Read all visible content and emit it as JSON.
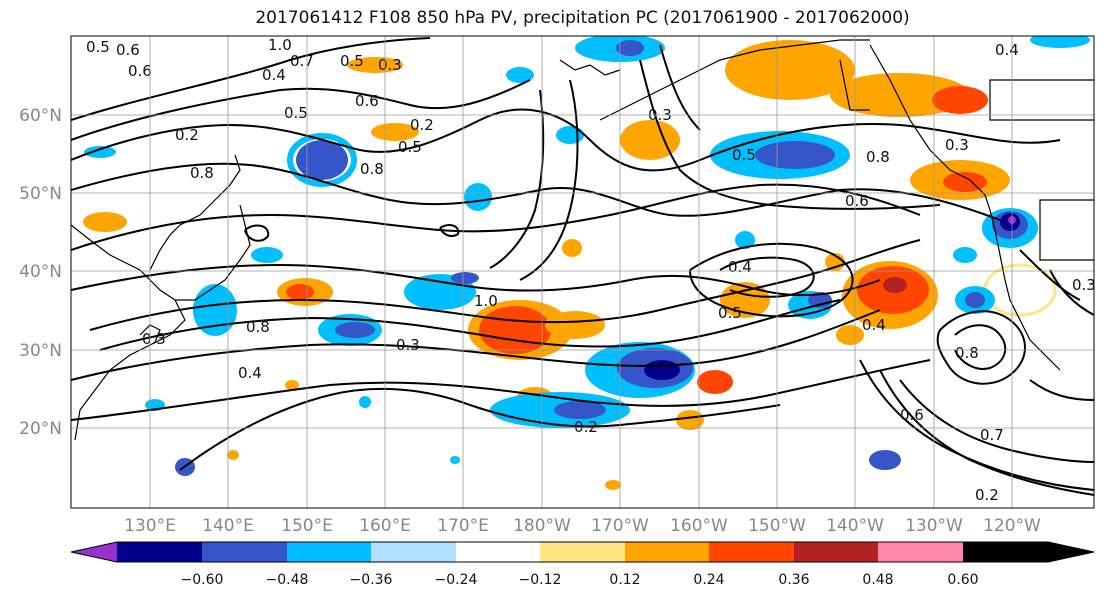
{
  "title": "2017061412 F108 850 hPa PV, precipitation PC (2017061900 - 2017062000)",
  "map": {
    "lon_ticks": [
      "130°E",
      "140°E",
      "150°E",
      "160°E",
      "170°E",
      "180°W",
      "170°W",
      "160°W",
      "150°W",
      "140°W",
      "130°W",
      "120°W"
    ],
    "lat_ticks": [
      "20°N",
      "30°N",
      "40°N",
      "50°N",
      "60°N"
    ],
    "gridlines": true
  },
  "colorbar": {
    "ticks": [
      "−0.60",
      "−0.48",
      "−0.36",
      "−0.24",
      "−0.12",
      "0.12",
      "0.24",
      "0.36",
      "0.48",
      "0.60"
    ],
    "colors": [
      "#9932cc",
      "#00008b",
      "#3655c8",
      "#00bfff",
      "#b0e0ff",
      "#ffffff",
      "#ffe680",
      "#ffa500",
      "#ff4500",
      "#b22222",
      "#ff88aa"
    ],
    "extend": "both"
  },
  "contour_labels": [
    "0.5",
    "0.6",
    "0.6",
    "1.0",
    "0.7",
    "0.4",
    "0.5",
    "0.3",
    "0.2",
    "0.5",
    "0.2",
    "0.6",
    "0.5",
    "0.8",
    "0.8",
    "0.3",
    "0.5",
    "0.8",
    "0.6",
    "0.4",
    "1.0",
    "0.8",
    "0.3",
    "0.3",
    "0.4",
    "0.5",
    "0.4",
    "0.2",
    "0.8",
    "0.6",
    "0.7",
    "0.2",
    "0.3",
    "0.3",
    "0.4"
  ]
}
